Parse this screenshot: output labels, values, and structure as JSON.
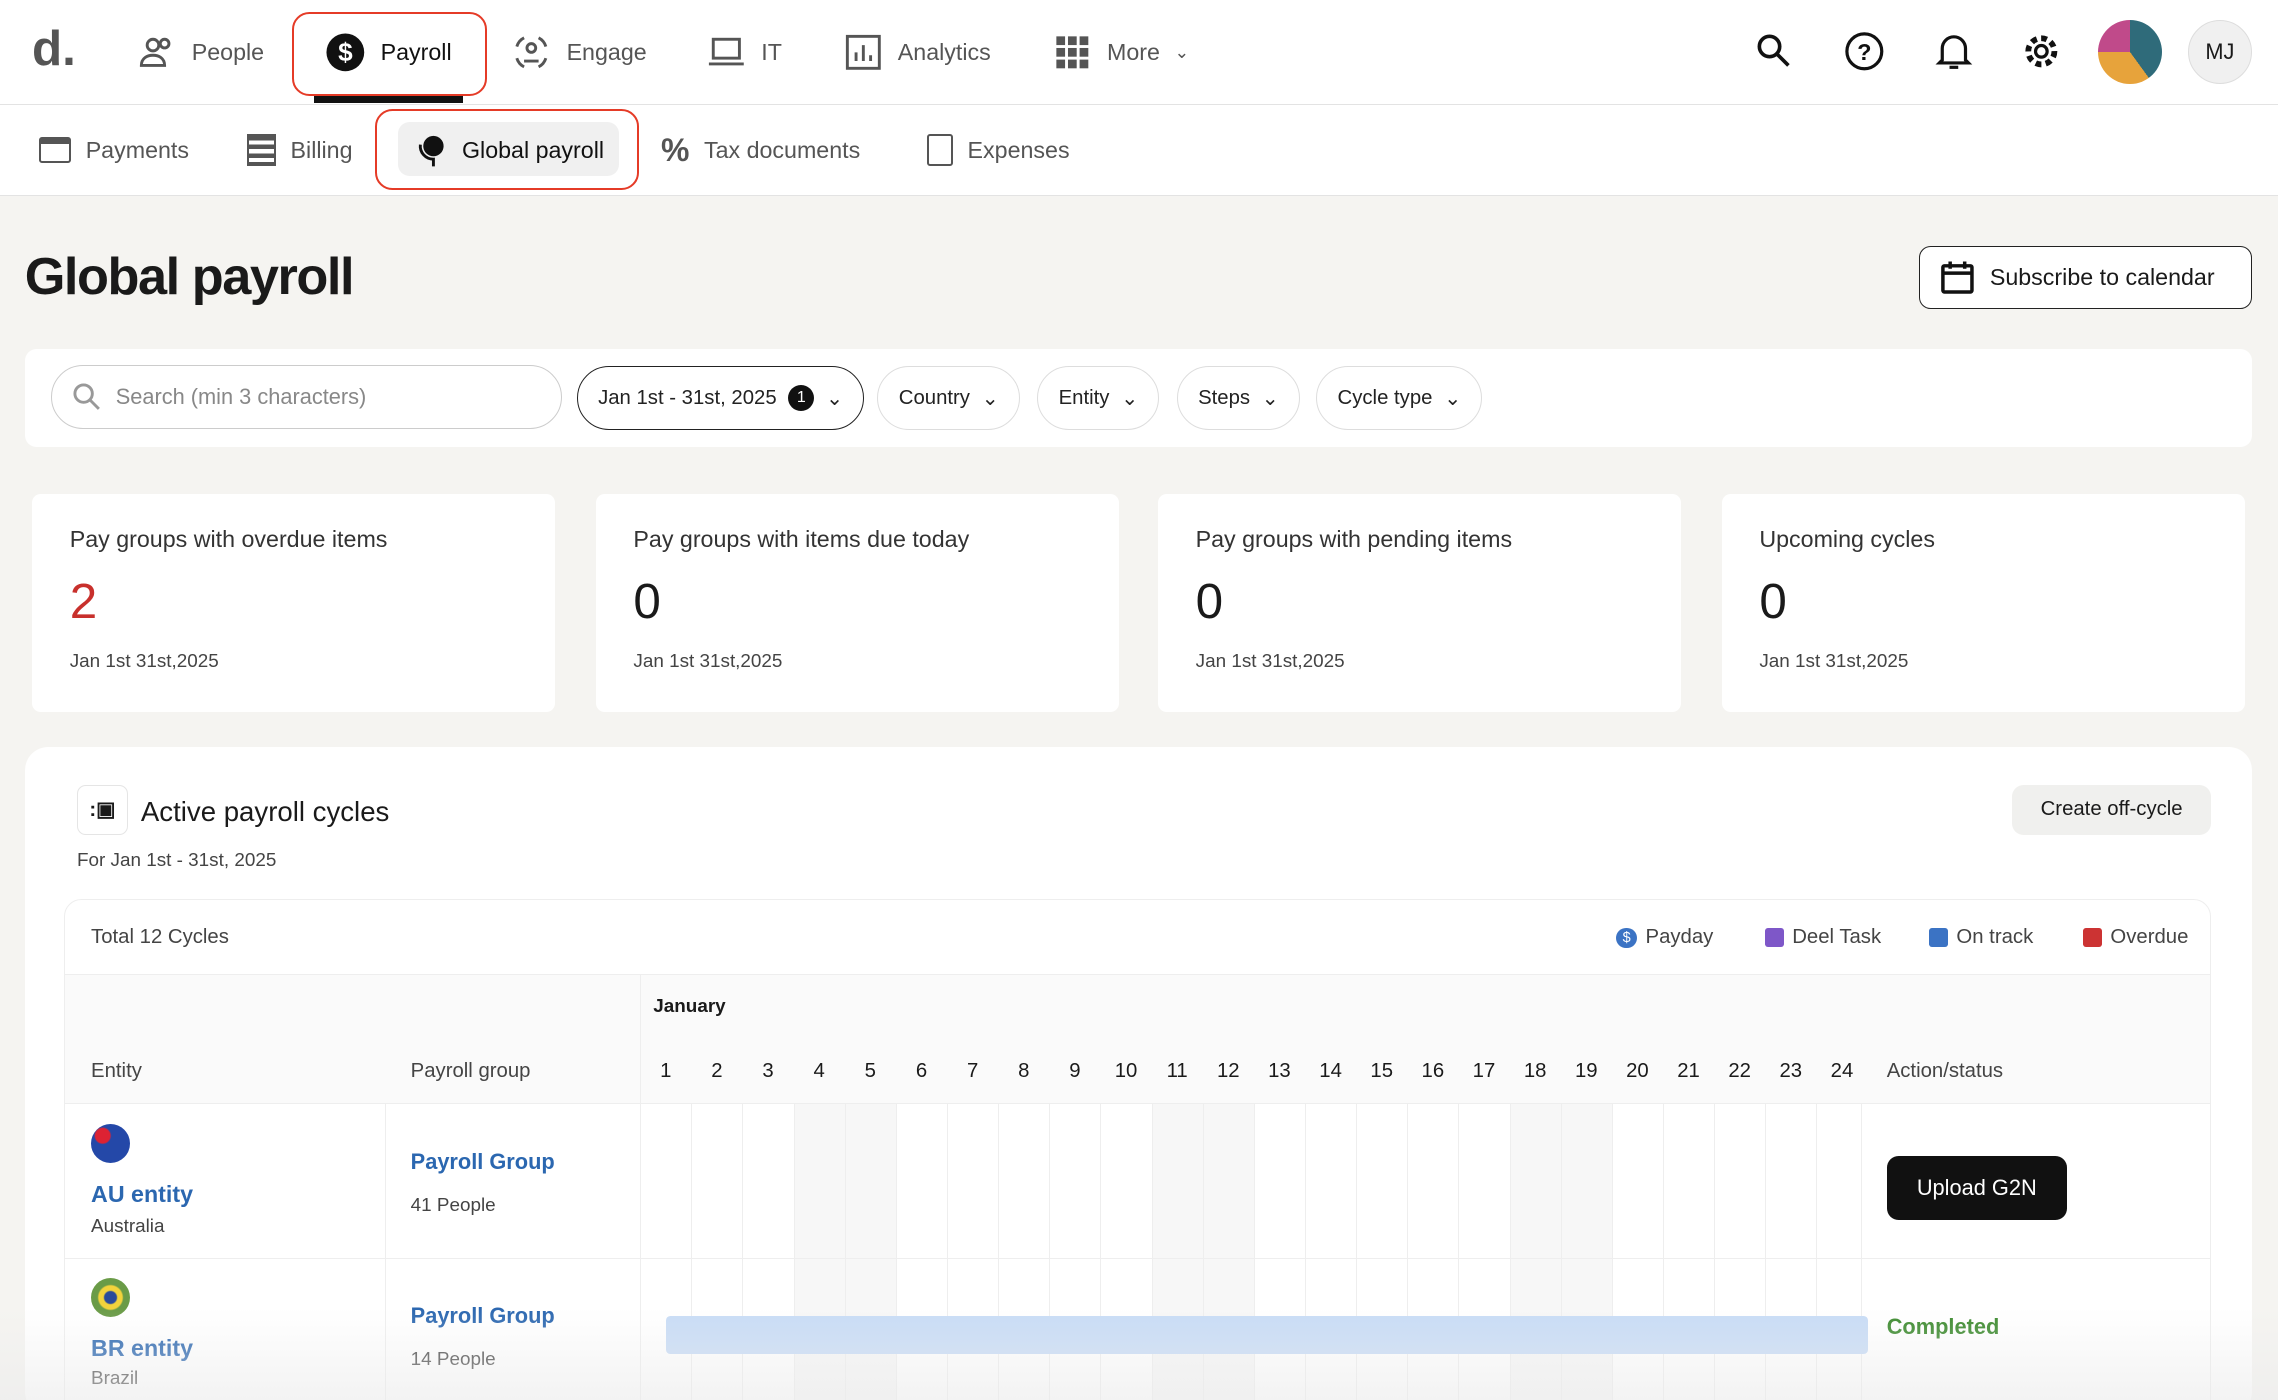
{
  "app": {
    "logo": "d."
  },
  "top_nav": {
    "items": [
      {
        "label": "People",
        "icon": "people-icon"
      },
      {
        "label": "Payroll",
        "icon": "dollar-circle-icon",
        "active": true
      },
      {
        "label": "Engage",
        "icon": "engage-icon"
      },
      {
        "label": "IT",
        "icon": "laptop-icon"
      },
      {
        "label": "Analytics",
        "icon": "chart-icon"
      },
      {
        "label": "More",
        "icon": "grid-icon"
      }
    ],
    "avatar_initials": "MJ"
  },
  "sub_nav": {
    "items": [
      {
        "label": "Payments",
        "icon": "card-icon"
      },
      {
        "label": "Billing",
        "icon": "receipt-icon"
      },
      {
        "label": "Global payroll",
        "icon": "globe-pin-icon",
        "active": true
      },
      {
        "label": "Tax documents",
        "icon": "percent-icon"
      },
      {
        "label": "Expenses",
        "icon": "expense-icon"
      }
    ]
  },
  "page": {
    "title": "Global payroll",
    "subscribe_label": "Subscribe to calendar"
  },
  "filters": {
    "search_placeholder": "Search (min 3 characters)",
    "date": "Jan 1st - 31st, 2025",
    "date_badge": "1",
    "country": "Country",
    "entity": "Entity",
    "steps": "Steps",
    "cycle_type": "Cycle type"
  },
  "cards": [
    {
      "title": "Pay groups with overdue items",
      "value": "2",
      "date": "Jan 1st 31st,2025"
    },
    {
      "title": "Pay groups with items due today",
      "value": "0",
      "date": "Jan 1st 31st,2025"
    },
    {
      "title": "Pay groups with pending items",
      "value": "0",
      "date": "Jan 1st 31st,2025"
    },
    {
      "title": "Upcoming cycles",
      "value": "0",
      "date": "Jan 1st 31st,2025"
    }
  ],
  "cycles": {
    "title": "Active payroll cycles",
    "subtitle": "For Jan 1st - 31st, 2025",
    "create_label": "Create off-cycle",
    "total": "Total 12 Cycles",
    "legend": [
      {
        "label": "Payday",
        "color": "#3b73c4"
      },
      {
        "label": "Deel Task",
        "color": "#7e57c8"
      },
      {
        "label": "On track",
        "color": "#3b73c4"
      },
      {
        "label": "Overdue",
        "color": "#cc3333"
      }
    ],
    "month": "January",
    "headers": {
      "entity": "Entity",
      "group": "Payroll group",
      "action": "Action/status"
    },
    "days": [
      "1",
      "2",
      "3",
      "4",
      "5",
      "6",
      "7",
      "8",
      "9",
      "10",
      "11",
      "12",
      "13",
      "14",
      "15",
      "16",
      "17",
      "18",
      "19",
      "20",
      "21",
      "22",
      "23",
      "24"
    ],
    "rows": [
      {
        "entity": "AU entity",
        "country": "Australia",
        "group": "Payroll Group",
        "people": "41 People",
        "action": "Upload G2N"
      },
      {
        "entity": "BR entity",
        "country": "Brazil",
        "group": "Payroll Group",
        "people": "14 People",
        "status": "Completed",
        "bar_start_day": 1,
        "bar_end_day": 24
      }
    ]
  }
}
